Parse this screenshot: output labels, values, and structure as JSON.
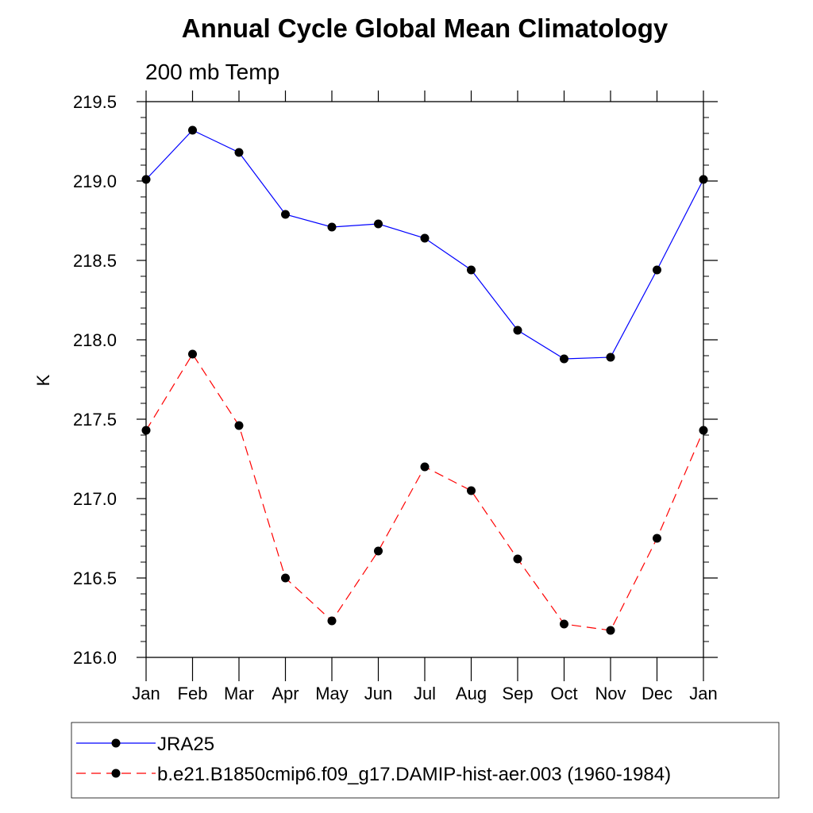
{
  "chart_data": {
    "type": "line",
    "title": "Annual Cycle Global Mean Climatology",
    "subtitle": "200 mb Temp",
    "xlabel": "",
    "ylabel": "K",
    "categories": [
      "Jan",
      "Feb",
      "Mar",
      "Apr",
      "May",
      "Jun",
      "Jul",
      "Aug",
      "Sep",
      "Oct",
      "Nov",
      "Dec",
      "Jan"
    ],
    "ylim": [
      216.0,
      219.5
    ],
    "yticks": [
      "216.0",
      "216.5",
      "217.0",
      "217.5",
      "218.0",
      "218.5",
      "219.0",
      "219.5"
    ],
    "legend_position": "bottom",
    "series": [
      {
        "name": "JRA25",
        "color": "#0000ff",
        "line_style": "solid",
        "values": [
          219.01,
          219.32,
          219.18,
          218.79,
          218.71,
          218.73,
          218.64,
          218.44,
          218.06,
          217.88,
          217.89,
          218.44,
          219.01
        ]
      },
      {
        "name": "b.e21.B1850cmip6.f09_g17.DAMIP-hist-aer.003 (1960-1984)",
        "color": "#ff0000",
        "line_style": "dashed",
        "values": [
          217.43,
          217.91,
          217.46,
          216.5,
          216.23,
          216.67,
          217.2,
          217.05,
          216.62,
          216.21,
          216.17,
          216.75,
          217.43
        ]
      }
    ]
  }
}
